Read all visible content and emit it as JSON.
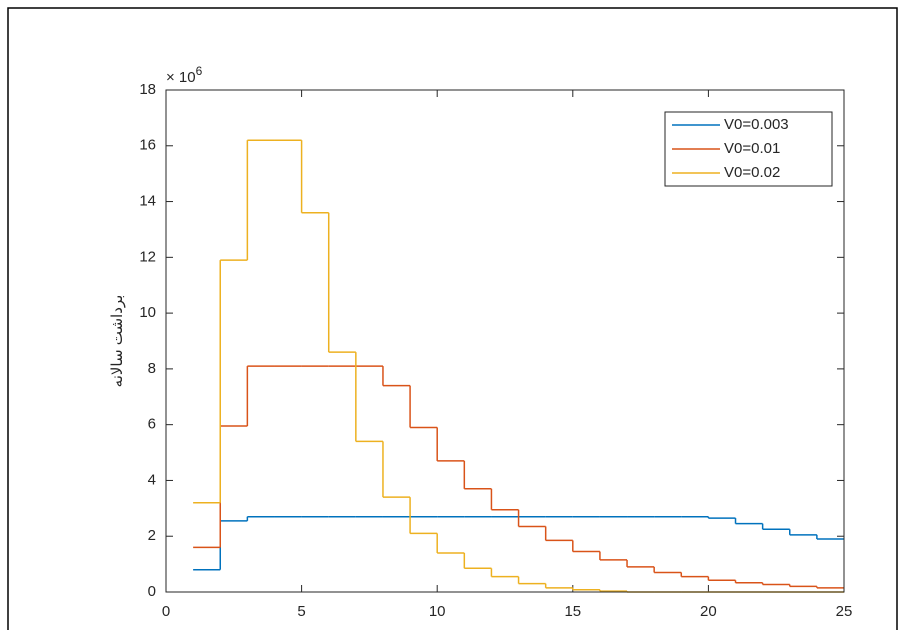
{
  "chart_data": {
    "type": "stairs",
    "y_label": "برداشت سالانه",
    "y_multiplier": {
      "base": "× 10",
      "exponent": "6"
    },
    "x": [
      1,
      2,
      3,
      4,
      5,
      6,
      7,
      8,
      9,
      10,
      11,
      12,
      13,
      14,
      15,
      16,
      17,
      18,
      19,
      20,
      21,
      22,
      23,
      24,
      25
    ],
    "series": [
      {
        "name": "V0=0.003",
        "color": "#0072bd",
        "values": [
          0.8,
          2.55,
          2.7,
          2.7,
          2.7,
          2.7,
          2.7,
          2.7,
          2.7,
          2.7,
          2.7,
          2.7,
          2.7,
          2.7,
          2.7,
          2.7,
          2.7,
          2.7,
          2.7,
          2.65,
          2.45,
          2.25,
          2.05,
          1.9,
          1.9
        ]
      },
      {
        "name": "V0=0.01",
        "color": "#d95319",
        "values": [
          1.6,
          5.95,
          8.1,
          8.1,
          8.1,
          8.1,
          8.1,
          7.4,
          5.9,
          4.7,
          3.7,
          2.95,
          2.35,
          1.85,
          1.45,
          1.15,
          0.9,
          0.7,
          0.55,
          0.42,
          0.33,
          0.27,
          0.2,
          0.15,
          0.15
        ]
      },
      {
        "name": "V0=0.02",
        "color": "#edb120",
        "values": [
          3.2,
          11.9,
          16.2,
          16.2,
          13.6,
          8.6,
          5.4,
          3.4,
          2.1,
          1.4,
          0.85,
          0.55,
          0.3,
          0.15,
          0.08,
          0.03,
          0,
          0,
          0,
          0,
          0,
          0,
          0,
          0,
          0
        ]
      }
    ],
    "xlim": [
      0,
      25
    ],
    "xticks": [
      0,
      5,
      10,
      15,
      20,
      25
    ],
    "ylim": [
      0,
      18
    ],
    "yticks": [
      0,
      2,
      4,
      6,
      8,
      10,
      12,
      14,
      16,
      18
    ],
    "legend": "upper right"
  }
}
